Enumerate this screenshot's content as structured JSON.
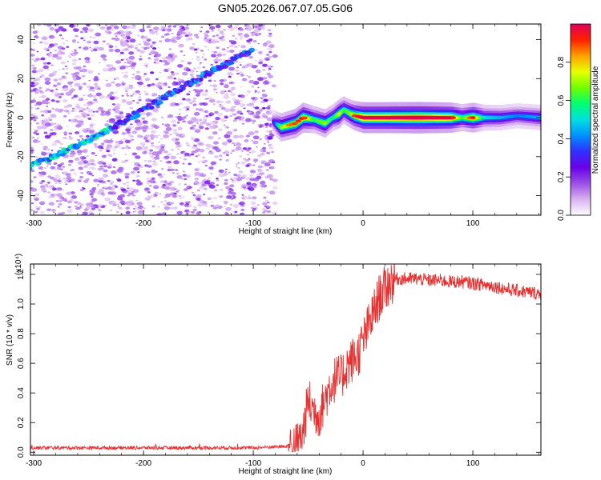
{
  "figure": {
    "title": "GN05.2026.067.07.05.G06"
  },
  "chart_data": [
    {
      "type": "heatmap",
      "title": "",
      "xlabel": "Height of straight line (km)",
      "ylabel": "Frequency (Hz)",
      "xlim": [
        -303,
        162
      ],
      "ylim": [
        -50,
        48
      ],
      "xticks": [
        -300,
        -200,
        -100,
        0,
        100
      ],
      "yticks": [
        -40,
        -20,
        0,
        20,
        40
      ],
      "colorbar": {
        "label": "Normalized spectral amplitude",
        "range": [
          0,
          1
        ],
        "ticks": [
          0.0,
          0.2,
          0.4,
          0.6,
          0.8
        ],
        "colors": [
          "#ffffff",
          "#d8b0f0",
          "#9a4fe8",
          "#6a00e8",
          "#3030ff",
          "#0090ff",
          "#00e0e0",
          "#00ff70",
          "#70ff00",
          "#e8ff00",
          "#ffa000",
          "#ff2000",
          "#e0005a"
        ]
      },
      "noise_region": {
        "x_range": [
          -303,
          -80
        ],
        "density": "scattered purple noise over full frequency range"
      },
      "chirp_line": {
        "x": [
          -303,
          -250,
          -200,
          -150,
          -100
        ],
        "y": [
          -25,
          -12,
          4,
          20,
          35
        ]
      },
      "ridge": {
        "x": [
          -83,
          -75,
          -62,
          -55,
          -45,
          -35,
          -28,
          -22,
          -18,
          -12,
          -8,
          0,
          20,
          50,
          80,
          90,
          100,
          110,
          125,
          140,
          162
        ],
        "y": [
          -2,
          -5,
          -3,
          0,
          -1,
          -3,
          0,
          2,
          4,
          2,
          1,
          0,
          0,
          0,
          0,
          0,
          0,
          0,
          0,
          1,
          0
        ],
        "amplitude": [
          0.25,
          0.7,
          0.8,
          0.85,
          0.6,
          0.7,
          0.55,
          0.75,
          0.6,
          0.7,
          0.8,
          0.95,
          0.95,
          1.0,
          0.9,
          0.6,
          0.85,
          0.5,
          0.45,
          0.4,
          0.45
        ]
      }
    },
    {
      "type": "line",
      "title": "",
      "xlabel": "Height of straight line (km)",
      "ylabel": "SNR (10 * v/v)",
      "yscale_label": "(x10⁴)",
      "xlim": [
        -303,
        162
      ],
      "ylim": [
        -0.02,
        1.27
      ],
      "xticks": [
        -300,
        -200,
        -100,
        0,
        100
      ],
      "yticks": [
        0.0,
        0.2,
        0.4,
        0.6,
        0.8,
        1.0,
        1.2
      ],
      "series": [
        {
          "color": "#e83030",
          "x": [
            -303,
            -250,
            -200,
            -150,
            -100,
            -70,
            -60,
            -55,
            -50,
            -45,
            -40,
            -35,
            -30,
            -25,
            -20,
            -15,
            -10,
            -5,
            0,
            5,
            10,
            15,
            20,
            25,
            30,
            40,
            50,
            60,
            70,
            80,
            90,
            100,
            110,
            120,
            130,
            140,
            150,
            162
          ],
          "y": [
            0.03,
            0.03,
            0.03,
            0.03,
            0.03,
            0.04,
            0.05,
            0.12,
            0.35,
            0.28,
            0.25,
            0.35,
            0.45,
            0.5,
            0.5,
            0.58,
            0.62,
            0.65,
            0.75,
            0.85,
            0.95,
            1.05,
            1.1,
            1.15,
            1.17,
            1.17,
            1.17,
            1.16,
            1.16,
            1.15,
            1.15,
            1.14,
            1.13,
            1.12,
            1.1,
            1.09,
            1.08,
            1.07
          ]
        }
      ]
    }
  ]
}
